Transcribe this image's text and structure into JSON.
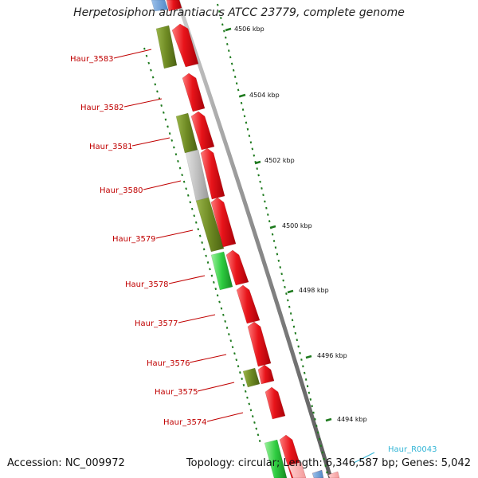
{
  "title": "Herpetosiphon aurantiacus ATCC 23779, complete genome",
  "footer": {
    "accession": "Accession: NC_009972",
    "summary": "Topology: circular; Length: 6,346,587 bp; Genes: 5,042"
  },
  "colors": {
    "forward_gene": "#e8141a",
    "cog_olive": "#6e8a23",
    "cog_grey": "#c0c0c0",
    "cog_green": "#2ecc40",
    "cog_blue": "#4f86c6",
    "label_red": "#c00000",
    "label_cyan": "#33b5d6",
    "tick_green": "#1e7a1e",
    "backbone": "#8c8c8c"
  },
  "kbp_labels": [
    "4506 kbp",
    "4504 kbp",
    "4502 kbp",
    "4500 kbp",
    "4498 kbp",
    "4496 kbp",
    "4494 kbp"
  ],
  "gene_labels": [
    "Haur_3583",
    "Haur_3582",
    "Haur_3581",
    "Haur_3580",
    "Haur_3579",
    "Haur_3578",
    "Haur_3577",
    "Haur_3576",
    "Haur_3575",
    "Haur_3574",
    "Haur_R0043"
  ]
}
